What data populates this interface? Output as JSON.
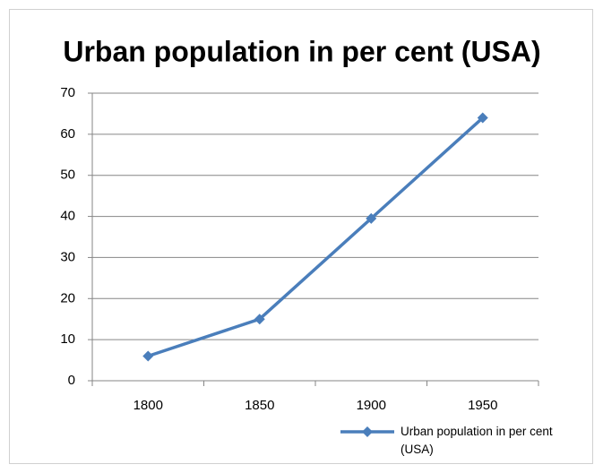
{
  "chart_data": {
    "type": "line",
    "title": "Urban population in per cent (USA)",
    "categories": [
      "1800",
      "1850",
      "1900",
      "1950"
    ],
    "series": [
      {
        "name": "Urban population in per cent (USA)",
        "color": "#4a7ebb",
        "values": [
          6,
          15,
          39.5,
          64
        ]
      }
    ],
    "ylim": [
      0,
      70
    ],
    "yticks": [
      0,
      10,
      20,
      30,
      40,
      50,
      60,
      70
    ],
    "grid": true,
    "legend": "bottom-right"
  }
}
